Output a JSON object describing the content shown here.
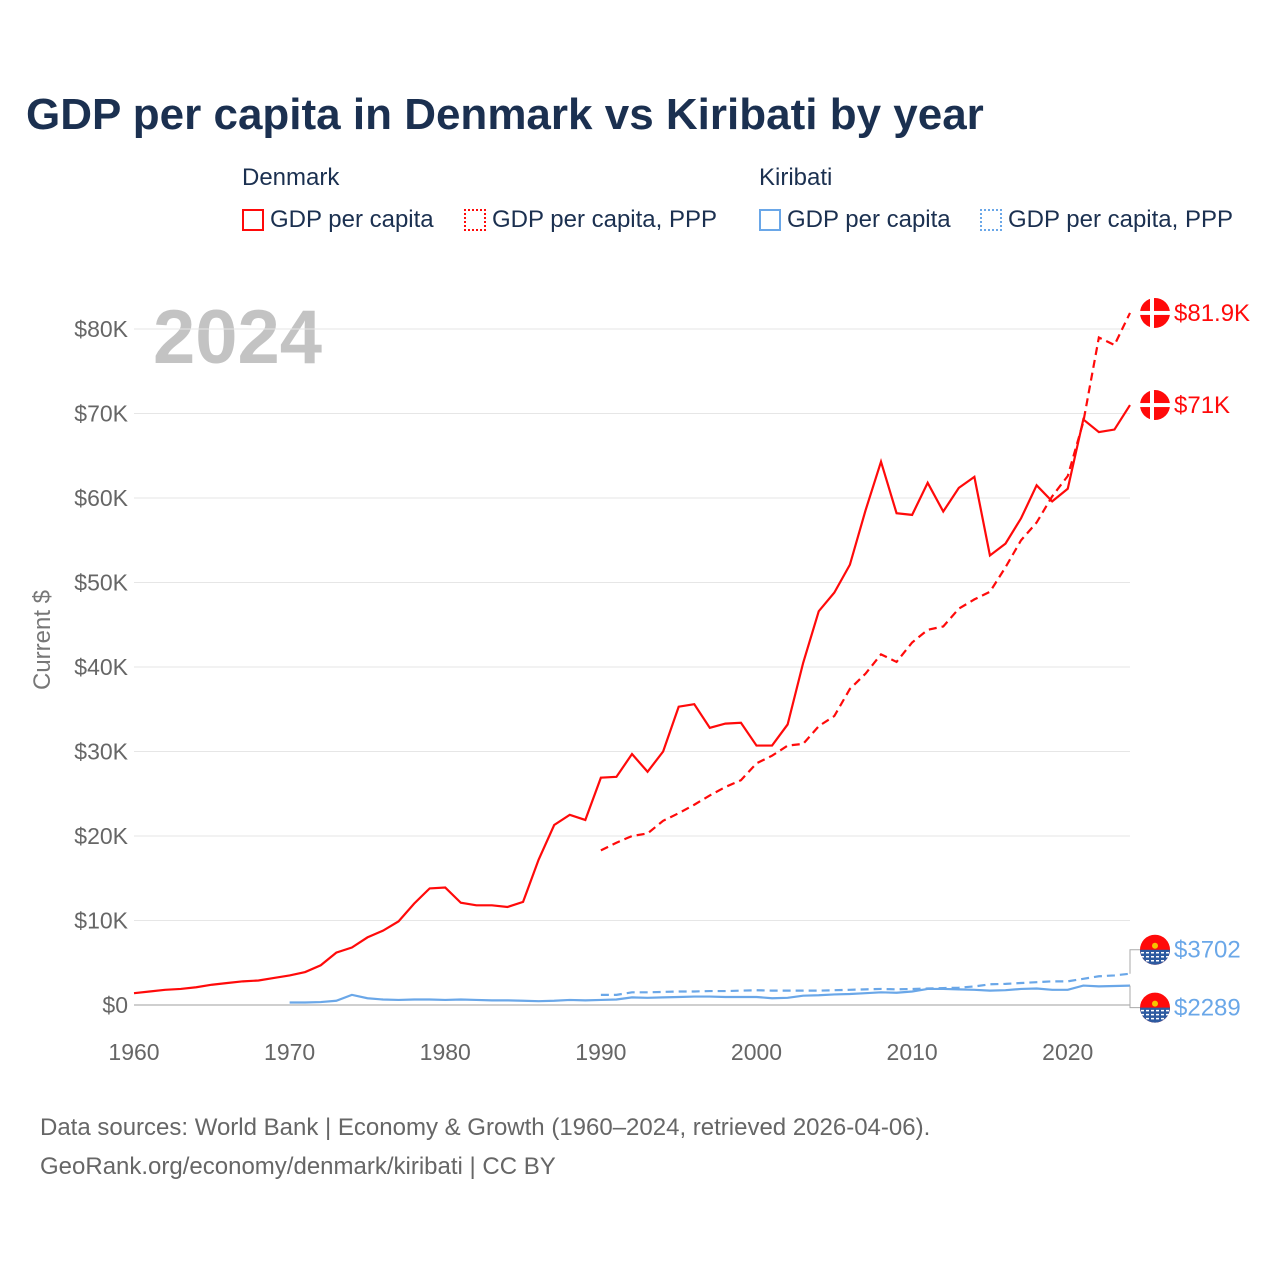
{
  "title": "GDP per capita in Denmark vs Kiribati by year",
  "legend": {
    "groups": [
      {
        "name": "Denmark",
        "items": [
          "GDP per capita",
          "GDP per capita, PPP"
        ]
      },
      {
        "name": "Kiribati",
        "items": [
          "GDP per capita",
          "GDP per capita, PPP"
        ]
      }
    ]
  },
  "colors": {
    "denmark": "#ff0a0a",
    "kiribati": "#6aa7e8"
  },
  "footer": {
    "line1": "Data sources: World Bank | Economy & Growth (1960–2024, retrieved 2026-04-06).",
    "line2": "GeoRank.org/economy/denmark/kiribati | CC BY"
  },
  "chart_data": {
    "type": "line",
    "title": "GDP per capita in Denmark vs Kiribati by year",
    "year_label": "2024",
    "ylabel": "Current $",
    "xlim": [
      1960,
      2024
    ],
    "ylim": [
      0,
      80000
    ],
    "xticks": [
      1960,
      1970,
      1980,
      1990,
      2000,
      2010,
      2020
    ],
    "xtick_labels": [
      "1960",
      "1970",
      "1980",
      "1990",
      "2000",
      "2010",
      "2020"
    ],
    "yticks": [
      0,
      10000,
      20000,
      30000,
      40000,
      50000,
      60000,
      70000,
      80000
    ],
    "ytick_labels": [
      "$0",
      "$10K",
      "$20K",
      "$30K",
      "$40K",
      "$50K",
      "$60K",
      "$70K",
      "$80K"
    ],
    "series": [
      {
        "name": "Denmark GDP per capita",
        "country": "denmark",
        "dash": false,
        "start": 1960,
        "end_label": "$71K",
        "values": [
          1.4,
          1.6,
          1.8,
          1.9,
          2.1,
          2.4,
          2.6,
          2.8,
          2.9,
          3.2,
          3.5,
          3.9,
          4.7,
          6.2,
          6.8,
          8.0,
          8.8,
          9.9,
          12.0,
          13.8,
          13.9,
          12.1,
          11.8,
          11.8,
          11.6,
          12.2,
          17.2,
          21.3,
          22.5,
          21.9,
          26.9,
          27.0,
          29.7,
          27.6,
          30.0,
          35.3,
          35.6,
          32.8,
          33.3,
          33.4,
          30.7,
          30.7,
          33.2,
          40.5,
          46.6,
          48.8,
          52.1,
          58.5,
          64.3,
          58.2,
          58.0,
          61.8,
          58.4,
          61.2,
          62.5,
          53.2,
          54.6,
          57.6,
          61.5,
          59.6,
          61.1,
          69.3,
          67.8,
          68.1,
          71.0
        ]
      },
      {
        "name": "Denmark GDP per capita, PPP",
        "country": "denmark",
        "dash": true,
        "start": 1990,
        "end_label": "$81.9K",
        "values": [
          18.3,
          19.2,
          20.0,
          20.3,
          21.8,
          22.7,
          23.7,
          24.8,
          25.8,
          26.6,
          28.6,
          29.5,
          30.7,
          30.9,
          33.0,
          34.2,
          37.4,
          39.2,
          41.5,
          40.6,
          42.9,
          44.4,
          44.8,
          46.9,
          48.0,
          48.9,
          51.8,
          55.0,
          57.1,
          60.2,
          62.6,
          69.0,
          79.0,
          78.1,
          81.9
        ]
      },
      {
        "name": "Kiribati GDP per capita",
        "country": "kiribati",
        "dash": false,
        "start": 1970,
        "end_label": "$2289",
        "values": [
          0.3,
          0.3,
          0.35,
          0.5,
          1.2,
          0.8,
          0.65,
          0.6,
          0.65,
          0.65,
          0.6,
          0.65,
          0.6,
          0.55,
          0.55,
          0.5,
          0.45,
          0.5,
          0.6,
          0.55,
          0.6,
          0.65,
          0.9,
          0.85,
          0.9,
          0.95,
          1.0,
          1.0,
          0.95,
          0.95,
          0.95,
          0.8,
          0.85,
          1.1,
          1.15,
          1.25,
          1.3,
          1.4,
          1.5,
          1.45,
          1.6,
          1.9,
          1.9,
          1.85,
          1.8,
          1.7,
          1.75,
          1.9,
          1.95,
          1.8,
          1.8,
          2.3,
          2.2,
          2.25,
          2.289
        ]
      },
      {
        "name": "Kiribati GDP per capita, PPP",
        "country": "kiribati",
        "dash": true,
        "start": 1990,
        "end_label": "$3702",
        "values": [
          1.2,
          1.2,
          1.5,
          1.5,
          1.55,
          1.6,
          1.6,
          1.65,
          1.65,
          1.7,
          1.75,
          1.7,
          1.7,
          1.7,
          1.7,
          1.75,
          1.8,
          1.85,
          1.9,
          1.85,
          1.9,
          1.95,
          2.0,
          2.05,
          2.2,
          2.45,
          2.5,
          2.6,
          2.7,
          2.8,
          2.8,
          3.1,
          3.4,
          3.5,
          3.702
        ]
      }
    ]
  }
}
